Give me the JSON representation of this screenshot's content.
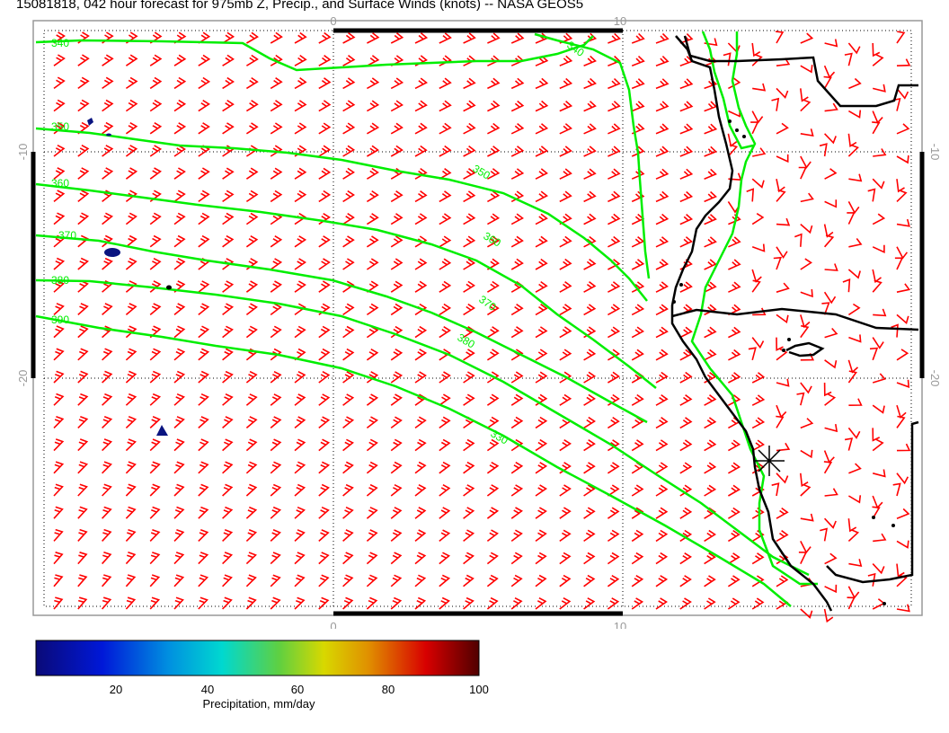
{
  "title": "15081818, 042 hour forecast for 975mb Z, Precip., and Surface Winds (knots) -- NASA GEOS5",
  "axes": {
    "lon_ticks": [
      "0",
      "10"
    ],
    "lat_ticks": [
      "-10",
      "-20"
    ]
  },
  "contour_labels": [
    "340",
    "350",
    "360",
    "370",
    "380",
    "390",
    "340",
    "350",
    "360",
    "370",
    "380",
    "330"
  ],
  "colorbar": {
    "label": "Precipitation, mm/day",
    "ticks": [
      "20",
      "40",
      "60",
      "80",
      "100"
    ],
    "range": [
      0,
      100
    ],
    "colors": [
      "#0a0a78",
      "#0018d8",
      "#0090e0",
      "#00d8d0",
      "#60d040",
      "#d8d800",
      "#e09000",
      "#d80000",
      "#500000"
    ]
  },
  "colors": {
    "wind_barbs": "#ff0000",
    "height_contours": "#00ee00",
    "coastline": "#000000",
    "precip_blob": "#0a1480"
  }
}
